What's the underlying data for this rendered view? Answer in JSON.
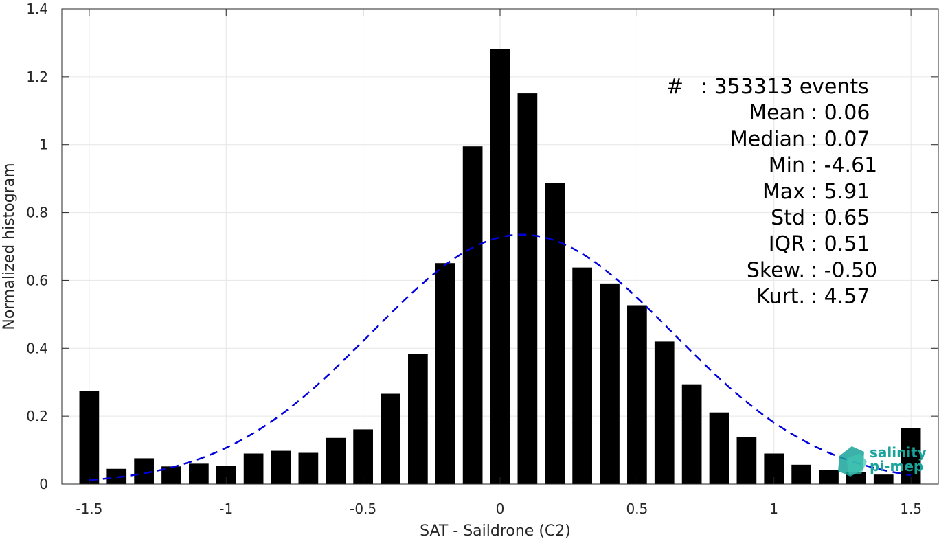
{
  "chart_data": {
    "type": "bar",
    "xlabel": "SAT - Saildrone (C2)",
    "ylabel": "Normalized histogram",
    "xlim": [
      -1.6,
      1.6
    ],
    "ylim": [
      0,
      1.4
    ],
    "xticks": [
      -1.5,
      -1,
      -0.5,
      0,
      0.5,
      1,
      1.5
    ],
    "xtick_labels": [
      "-1.5",
      "-1",
      "-0.5",
      "0",
      "0.5",
      "1",
      "1.5"
    ],
    "yticks": [
      0,
      0.2,
      0.4,
      0.6,
      0.8,
      1,
      1.2,
      1.4
    ],
    "ytick_labels": [
      "0",
      "0.2",
      "0.4",
      "0.6",
      "0.8",
      "1",
      "1.2",
      "1.4"
    ],
    "grid": true,
    "bar_color": "#000000",
    "x": [
      -1.5,
      -1.4,
      -1.3,
      -1.2,
      -1.1,
      -1.0,
      -0.9,
      -0.8,
      -0.7,
      -0.6,
      -0.5,
      -0.4,
      -0.3,
      -0.2,
      -0.1,
      0.0,
      0.1,
      0.2,
      0.3,
      0.4,
      0.5,
      0.6,
      0.7,
      0.8,
      0.9,
      1.0,
      1.1,
      1.2,
      1.3,
      1.4,
      1.5
    ],
    "values": [
      0.275,
      0.045,
      0.076,
      0.052,
      0.06,
      0.054,
      0.09,
      0.098,
      0.092,
      0.136,
      0.161,
      0.266,
      0.384,
      0.651,
      0.995,
      1.281,
      1.151,
      0.887,
      0.638,
      0.591,
      0.527,
      0.42,
      0.294,
      0.211,
      0.138,
      0.09,
      0.057,
      0.042,
      0.035,
      0.028,
      0.165
    ],
    "fit_curve": {
      "style": "dashed",
      "color": "#0000dd",
      "mean": 0.08,
      "std": 0.55,
      "peak": 0.735,
      "x_range": [
        -1.5,
        1.5
      ]
    },
    "stats": [
      {
        "label": "#",
        "sep": " : ",
        "value": "353313 events"
      },
      {
        "label": "Mean",
        "sep": " : ",
        "value": "0.06"
      },
      {
        "label": "Median",
        "sep": " : ",
        "value": "0.07"
      },
      {
        "label": "Min",
        "sep": " : ",
        "value": "-4.61"
      },
      {
        "label": "Max",
        "sep": " : ",
        "value": "5.91"
      },
      {
        "label": "Std",
        "sep": " : ",
        "value": "0.65"
      },
      {
        "label": "IQR",
        "sep": " : ",
        "value": "0.51"
      },
      {
        "label": "Skew.",
        "sep": " : ",
        "value": "-0.50"
      },
      {
        "label": "Kurt.",
        "sep": " : ",
        "value": "4.57"
      }
    ],
    "logo": {
      "line1": "salinity",
      "line2": "pi-mep"
    }
  }
}
